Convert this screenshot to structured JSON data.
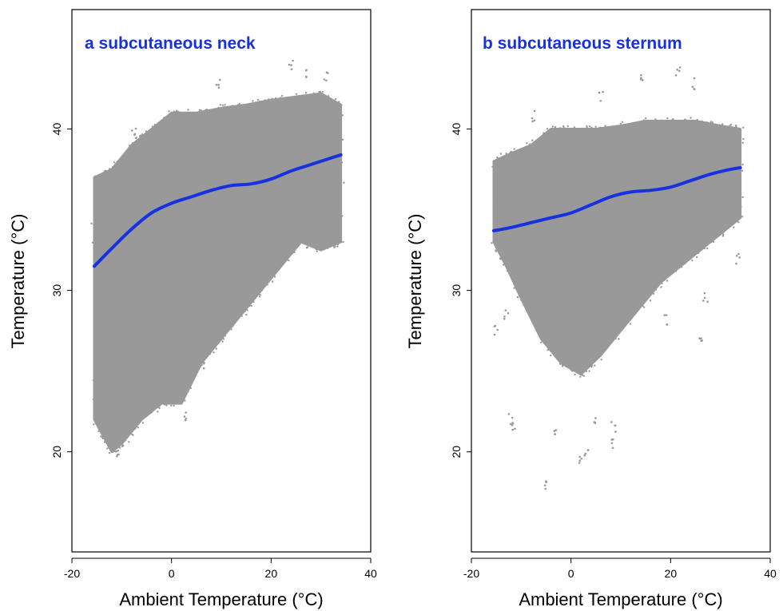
{
  "colors": {
    "points": "#999999",
    "fit_line": "#1632e0",
    "frame": "#000000"
  },
  "chart_data": [
    {
      "type": "scatter",
      "title": "a subcutaneous neck",
      "xlabel": "Ambient Temperature (°C)",
      "ylabel": "Temperature (°C)",
      "xlim": [
        -20,
        40
      ],
      "ylim": [
        13.8,
        47.4
      ],
      "xticks": [
        -20,
        0,
        20,
        40
      ],
      "yticks": [
        20,
        30,
        40
      ],
      "xtick_labels": [
        "-20",
        "0",
        "20",
        "40"
      ],
      "ytick_labels": [
        "20",
        "30",
        "40"
      ],
      "grid": false,
      "series": [
        {
          "kind": "points-cloud",
          "upper": [
            [
              -15.5,
              37.0
            ],
            [
              -12,
              37.5
            ],
            [
              -8,
              39.0
            ],
            [
              -4,
              40.0
            ],
            [
              0,
              41.0
            ],
            [
              5,
              41.0
            ],
            [
              10,
              41.3
            ],
            [
              15,
              41.5
            ],
            [
              20,
              41.8
            ],
            [
              25,
              42.0
            ],
            [
              30,
              42.2
            ],
            [
              34,
              41.5
            ]
          ],
          "lower": [
            [
              34,
              33.0
            ],
            [
              30,
              32.5
            ],
            [
              26,
              33.0
            ],
            [
              22,
              31.5
            ],
            [
              18,
              30.0
            ],
            [
              14,
              28.5
            ],
            [
              10,
              27.0
            ],
            [
              6,
              25.5
            ],
            [
              2,
              23.0
            ],
            [
              -2,
              23.0
            ],
            [
              -6,
              22.0
            ],
            [
              -10,
              20.5
            ],
            [
              -12,
              20.0
            ],
            [
              -15.5,
              22.0
            ]
          ],
          "outliers": [
            [
              -14.0,
              20.9
            ],
            [
              -12.2,
              20.3
            ],
            [
              -11.0,
              20.0
            ],
            [
              -13.5,
              22.4
            ],
            [
              3.0,
              22.2
            ],
            [
              6.5,
              25.3
            ],
            [
              10.5,
              27.8
            ],
            [
              24.0,
              44.0
            ],
            [
              27.5,
              43.5
            ],
            [
              31.0,
              43.2
            ],
            [
              9.5,
              42.8
            ],
            [
              -7.5,
              39.8
            ],
            [
              1.0,
              40.8
            ],
            [
              33.0,
              33.2
            ]
          ]
        },
        {
          "kind": "smooth-fit",
          "x": [
            -15.5,
            -12,
            -8,
            -4,
            0,
            4,
            8,
            12,
            16,
            20,
            24,
            28,
            32,
            34
          ],
          "y": [
            31.5,
            32.6,
            33.8,
            34.8,
            35.4,
            35.8,
            36.2,
            36.5,
            36.6,
            36.9,
            37.4,
            37.8,
            38.2,
            38.4
          ]
        }
      ]
    },
    {
      "type": "scatter",
      "title": "b subcutaneous sternum",
      "xlabel": "Ambient Temperature (°C)",
      "ylabel": "Temperature (°C)",
      "xlim": [
        -20,
        40
      ],
      "ylim": [
        13.8,
        47.4
      ],
      "xticks": [
        -20,
        0,
        20,
        40
      ],
      "yticks": [
        20,
        30,
        40
      ],
      "xtick_labels": [
        "-20",
        "0",
        "20",
        "40"
      ],
      "ytick_labels": [
        "20",
        "30",
        "40"
      ],
      "grid": false,
      "series": [
        {
          "kind": "points-cloud",
          "upper": [
            [
              -15.5,
              38.0
            ],
            [
              -12,
              38.5
            ],
            [
              -8,
              39.0
            ],
            [
              -4,
              40.0
            ],
            [
              0,
              40.0
            ],
            [
              5,
              40.0
            ],
            [
              10,
              40.2
            ],
            [
              15,
              40.5
            ],
            [
              20,
              40.5
            ],
            [
              25,
              40.5
            ],
            [
              30,
              40.2
            ],
            [
              34,
              40.0
            ]
          ],
          "lower": [
            [
              34,
              34.5
            ],
            [
              30,
              33.5
            ],
            [
              26,
              32.5
            ],
            [
              22,
              31.5
            ],
            [
              18,
              30.5
            ],
            [
              14,
              29.0
            ],
            [
              10,
              27.5
            ],
            [
              6,
              26.0
            ],
            [
              2,
              24.8
            ],
            [
              -2,
              25.5
            ],
            [
              -6,
              27.0
            ],
            [
              -10,
              29.5
            ],
            [
              -13,
              31.5
            ],
            [
              -15.5,
              33.0
            ]
          ],
          "outliers": [
            [
              -12.0,
              22.0
            ],
            [
              -11.5,
              21.5
            ],
            [
              -5.0,
              18.0
            ],
            [
              -3.5,
              21.0
            ],
            [
              2.0,
              19.5
            ],
            [
              3.0,
              20.0
            ],
            [
              8.5,
              20.5
            ],
            [
              8.5,
              21.5
            ],
            [
              5.0,
              22.0
            ],
            [
              -15.0,
              27.5
            ],
            [
              -13.0,
              28.5
            ],
            [
              21.5,
              43.5
            ],
            [
              14.0,
              43.0
            ],
            [
              6.0,
              42.0
            ],
            [
              -7.5,
              40.8
            ],
            [
              24.5,
              42.8
            ],
            [
              33.5,
              32.0
            ],
            [
              26.0,
              27.0
            ],
            [
              19.0,
              28.2
            ],
            [
              27.0,
              29.5
            ],
            [
              13.5,
              29.8
            ]
          ]
        },
        {
          "kind": "smooth-fit",
          "x": [
            -15.5,
            -12,
            -8,
            -4,
            0,
            4,
            8,
            12,
            16,
            20,
            24,
            28,
            32,
            34
          ],
          "y": [
            33.7,
            33.9,
            34.2,
            34.5,
            34.8,
            35.3,
            35.8,
            36.1,
            36.2,
            36.4,
            36.8,
            37.2,
            37.5,
            37.6
          ]
        }
      ]
    }
  ]
}
